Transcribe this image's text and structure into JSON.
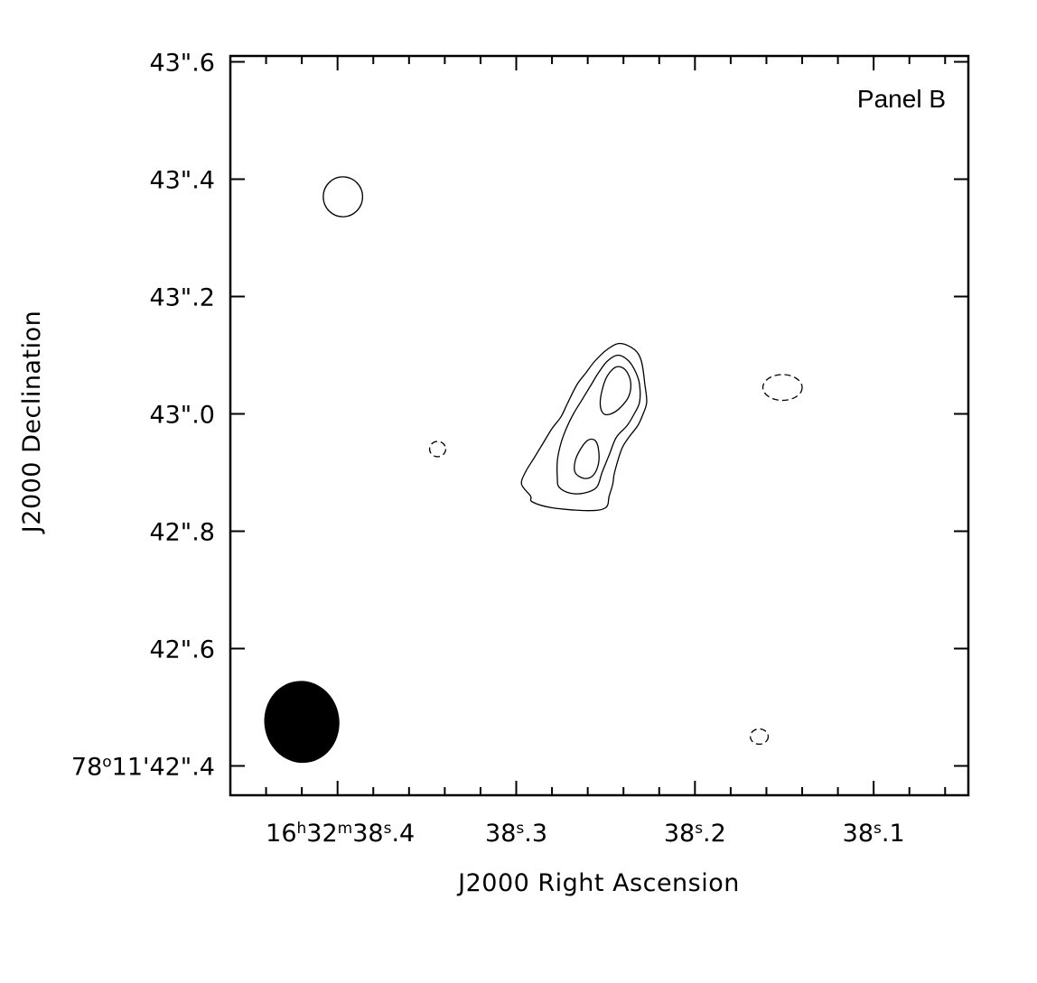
{
  "chart_data": {
    "type": "contour",
    "panel_label": "Panel B",
    "xlabel": "J2000 Right Ascension",
    "ylabel": "J2000 Declination",
    "x_axis_reversed": true,
    "xlim_s": [
      38.46,
      38.047
    ],
    "ylim_arcsec": [
      42.35,
      43.61
    ],
    "x_ticks": [
      {
        "value": 38.4,
        "parts": [
          {
            "t": "16",
            "sup": false
          },
          {
            "t": "h",
            "sup": true
          },
          {
            "t": "32",
            "sup": false
          },
          {
            "t": "m",
            "sup": true
          },
          {
            "t": "38",
            "sup": false
          },
          {
            "t": "s",
            "sup": true
          },
          {
            "t": ".4",
            "sup": false
          }
        ]
      },
      {
        "value": 38.3,
        "parts": [
          {
            "t": "38",
            "sup": false
          },
          {
            "t": "s",
            "sup": true
          },
          {
            "t": ".3",
            "sup": false
          }
        ]
      },
      {
        "value": 38.2,
        "parts": [
          {
            "t": "38",
            "sup": false
          },
          {
            "t": "s",
            "sup": true
          },
          {
            "t": ".2",
            "sup": false
          }
        ]
      },
      {
        "value": 38.1,
        "parts": [
          {
            "t": "38",
            "sup": false
          },
          {
            "t": "s",
            "sup": true
          },
          {
            "t": ".1",
            "sup": false
          }
        ]
      }
    ],
    "y_ticks": [
      {
        "value": 43.6,
        "parts": [
          {
            "t": "43\".6",
            "sup": false
          }
        ]
      },
      {
        "value": 43.4,
        "parts": [
          {
            "t": "43\".4",
            "sup": false
          }
        ]
      },
      {
        "value": 43.2,
        "parts": [
          {
            "t": "43\".2",
            "sup": false
          }
        ]
      },
      {
        "value": 43.0,
        "parts": [
          {
            "t": "43\".0",
            "sup": false
          }
        ]
      },
      {
        "value": 42.8,
        "parts": [
          {
            "t": "42\".8",
            "sup": false
          }
        ]
      },
      {
        "value": 42.6,
        "parts": [
          {
            "t": "42\".6",
            "sup": false
          }
        ]
      },
      {
        "value": 42.4,
        "parts": [
          {
            "t": "78",
            "sup": false
          },
          {
            "t": "o",
            "sup": true
          },
          {
            "t": "11'42\".4",
            "sup": false
          }
        ]
      }
    ],
    "contours": [
      {
        "name": "outer",
        "dashed": false,
        "points": [
          [
            38.292,
            42.86
          ],
          [
            38.291,
            42.85
          ],
          [
            38.28,
            42.84
          ],
          [
            38.26,
            42.835
          ],
          [
            38.25,
            42.84
          ],
          [
            38.248,
            42.86
          ],
          [
            38.246,
            42.88
          ],
          [
            38.245,
            42.9
          ],
          [
            38.241,
            42.94
          ],
          [
            38.237,
            42.96
          ],
          [
            38.232,
            42.98
          ],
          [
            38.229,
            43.0
          ],
          [
            38.227,
            43.02
          ],
          [
            38.228,
            43.05
          ],
          [
            38.23,
            43.09
          ],
          [
            38.234,
            43.11
          ],
          [
            38.242,
            43.12
          ],
          [
            38.249,
            43.11
          ],
          [
            38.256,
            43.09
          ],
          [
            38.261,
            43.07
          ],
          [
            38.266,
            43.05
          ],
          [
            38.271,
            43.02
          ],
          [
            38.275,
            42.995
          ],
          [
            38.28,
            42.975
          ],
          [
            38.285,
            42.95
          ],
          [
            38.29,
            42.925
          ],
          [
            38.295,
            42.9
          ],
          [
            38.297,
            42.88
          ]
        ]
      },
      {
        "name": "middle",
        "dashed": false,
        "points": [
          [
            38.277,
            42.89
          ],
          [
            38.276,
            42.875
          ],
          [
            38.27,
            42.865
          ],
          [
            38.262,
            42.865
          ],
          [
            38.255,
            42.875
          ],
          [
            38.252,
            42.9
          ],
          [
            38.248,
            42.93
          ],
          [
            38.244,
            42.96
          ],
          [
            38.238,
            42.98
          ],
          [
            38.234,
            43.0
          ],
          [
            38.231,
            43.02
          ],
          [
            38.231,
            43.05
          ],
          [
            38.233,
            43.07
          ],
          [
            38.237,
            43.09
          ],
          [
            38.243,
            43.1
          ],
          [
            38.249,
            43.09
          ],
          [
            38.254,
            43.07
          ],
          [
            38.258,
            43.05
          ],
          [
            38.263,
            43.025
          ],
          [
            38.268,
            43.0
          ],
          [
            38.272,
            42.975
          ],
          [
            38.275,
            42.95
          ],
          [
            38.277,
            42.92
          ]
        ]
      },
      {
        "name": "inner-upper",
        "dashed": false,
        "points": [
          [
            38.247,
            43.0
          ],
          [
            38.242,
            43.01
          ],
          [
            38.237,
            43.03
          ],
          [
            38.236,
            43.055
          ],
          [
            38.239,
            43.075
          ],
          [
            38.244,
            43.08
          ],
          [
            38.249,
            43.065
          ],
          [
            38.252,
            43.04
          ],
          [
            38.253,
            43.015
          ],
          [
            38.251,
            43.0
          ]
        ]
      },
      {
        "name": "inner-lower",
        "dashed": false,
        "points": [
          [
            38.267,
            42.9
          ],
          [
            38.262,
            42.89
          ],
          [
            38.257,
            42.895
          ],
          [
            38.254,
            42.915
          ],
          [
            38.254,
            42.94
          ],
          [
            38.256,
            42.955
          ],
          [
            38.26,
            42.955
          ],
          [
            38.264,
            42.94
          ],
          [
            38.267,
            42.92
          ]
        ]
      },
      {
        "name": "positive-blob",
        "dashed": false,
        "cx": 38.397,
        "cy": 43.37,
        "rx": 0.011,
        "ry": 0.034
      },
      {
        "name": "negative-upper-right",
        "dashed": true,
        "cx": 38.151,
        "cy": 43.045,
        "rx": 0.011,
        "ry": 0.022
      },
      {
        "name": "negative-left",
        "dashed": true,
        "cx": 38.344,
        "cy": 42.94,
        "rx": 0.0045,
        "ry": 0.013
      },
      {
        "name": "negative-lower-right",
        "dashed": true,
        "cx": 38.164,
        "cy": 42.45,
        "rx": 0.005,
        "ry": 0.013
      }
    ],
    "beam": {
      "cx": 38.42,
      "cy": 42.475,
      "rx": 0.021,
      "ry": 0.07,
      "fill": "#000000"
    }
  }
}
